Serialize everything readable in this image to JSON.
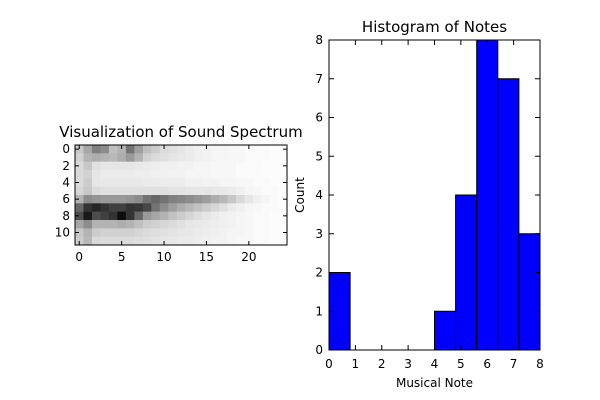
{
  "chart_data": [
    {
      "type": "heatmap",
      "title": "Visualization of Sound Spectrum",
      "xlabel": "",
      "ylabel": "",
      "x_range": [
        -0.5,
        24.5
      ],
      "y_range": [
        -0.5,
        11.5
      ],
      "x_ticks": [
        0,
        5,
        10,
        15,
        20
      ],
      "y_ticks": [
        0,
        2,
        4,
        6,
        8,
        10
      ],
      "y_inverted": true,
      "colormap": "gray_r",
      "grid": false,
      "values": [
        [
          0.22,
          0.35,
          0.5,
          0.45,
          0.25,
          0.3,
          0.55,
          0.38,
          0.25,
          0.2,
          0.14,
          0.12,
          0.1,
          0.08,
          0.06,
          0.05,
          0.04,
          0.04,
          0.03,
          0.03,
          0.02,
          0.02,
          0.02,
          0.01,
          0.01
        ],
        [
          0.18,
          0.3,
          0.32,
          0.3,
          0.28,
          0.32,
          0.4,
          0.3,
          0.18,
          0.14,
          0.12,
          0.1,
          0.09,
          0.08,
          0.06,
          0.05,
          0.04,
          0.04,
          0.03,
          0.03,
          0.02,
          0.02,
          0.02,
          0.01,
          0.01
        ],
        [
          0.15,
          0.22,
          0.12,
          0.1,
          0.1,
          0.1,
          0.1,
          0.09,
          0.08,
          0.07,
          0.06,
          0.06,
          0.05,
          0.05,
          0.04,
          0.04,
          0.03,
          0.03,
          0.03,
          0.02,
          0.02,
          0.02,
          0.01,
          0.01,
          0.01
        ],
        [
          0.15,
          0.18,
          0.1,
          0.08,
          0.08,
          0.08,
          0.08,
          0.07,
          0.07,
          0.06,
          0.06,
          0.05,
          0.05,
          0.04,
          0.04,
          0.04,
          0.03,
          0.03,
          0.03,
          0.02,
          0.02,
          0.02,
          0.01,
          0.01,
          0.01
        ],
        [
          0.14,
          0.2,
          0.1,
          0.09,
          0.09,
          0.09,
          0.09,
          0.09,
          0.08,
          0.08,
          0.07,
          0.07,
          0.07,
          0.06,
          0.06,
          0.05,
          0.05,
          0.04,
          0.04,
          0.03,
          0.03,
          0.02,
          0.02,
          0.01,
          0.01
        ],
        [
          0.16,
          0.22,
          0.14,
          0.12,
          0.12,
          0.12,
          0.12,
          0.12,
          0.12,
          0.12,
          0.12,
          0.11,
          0.11,
          0.1,
          0.1,
          0.1,
          0.09,
          0.09,
          0.08,
          0.06,
          0.04,
          0.03,
          0.02,
          0.02,
          0.01
        ],
        [
          0.3,
          0.45,
          0.42,
          0.4,
          0.4,
          0.4,
          0.42,
          0.45,
          0.55,
          0.6,
          0.55,
          0.5,
          0.48,
          0.45,
          0.42,
          0.38,
          0.32,
          0.28,
          0.22,
          0.15,
          0.1,
          0.06,
          0.04,
          0.02,
          0.01
        ],
        [
          0.6,
          0.8,
          0.85,
          0.8,
          0.75,
          0.75,
          0.8,
          0.78,
          0.72,
          0.55,
          0.45,
          0.38,
          0.32,
          0.28,
          0.24,
          0.2,
          0.16,
          0.12,
          0.08,
          0.06,
          0.04,
          0.03,
          0.02,
          0.02,
          0.01
        ],
        [
          0.7,
          0.9,
          0.7,
          0.75,
          0.8,
          0.95,
          0.8,
          0.6,
          0.4,
          0.35,
          0.3,
          0.24,
          0.2,
          0.16,
          0.13,
          0.1,
          0.08,
          0.06,
          0.05,
          0.04,
          0.03,
          0.02,
          0.02,
          0.01,
          0.01
        ],
        [
          0.35,
          0.45,
          0.3,
          0.3,
          0.3,
          0.32,
          0.3,
          0.25,
          0.2,
          0.18,
          0.16,
          0.14,
          0.12,
          0.1,
          0.09,
          0.08,
          0.07,
          0.06,
          0.05,
          0.04,
          0.03,
          0.02,
          0.02,
          0.01,
          0.01
        ],
        [
          0.22,
          0.3,
          0.2,
          0.18,
          0.18,
          0.18,
          0.18,
          0.16,
          0.14,
          0.13,
          0.12,
          0.11,
          0.1,
          0.09,
          0.08,
          0.07,
          0.06,
          0.05,
          0.04,
          0.04,
          0.03,
          0.02,
          0.02,
          0.01,
          0.01
        ],
        [
          0.2,
          0.28,
          0.15,
          0.14,
          0.14,
          0.14,
          0.14,
          0.13,
          0.12,
          0.11,
          0.1,
          0.09,
          0.08,
          0.08,
          0.07,
          0.06,
          0.05,
          0.05,
          0.04,
          0.03,
          0.03,
          0.02,
          0.02,
          0.01,
          0.01
        ]
      ]
    },
    {
      "type": "bar",
      "title": "Histogram of Notes",
      "xlabel": "Musical Note",
      "ylabel": "Count",
      "xlim": [
        0,
        8
      ],
      "ylim": [
        0,
        8
      ],
      "x_ticks": [
        0,
        1,
        2,
        3,
        4,
        5,
        6,
        7,
        8
      ],
      "y_ticks": [
        0,
        1,
        2,
        3,
        4,
        5,
        6,
        7,
        8
      ],
      "bin_edges": [
        0,
        0.8,
        1.6,
        2.4,
        3.2,
        4.0,
        4.8,
        5.6,
        6.4,
        7.2,
        8.0
      ],
      "values": [
        2,
        0,
        0,
        0,
        0,
        1,
        4,
        8,
        7,
        3
      ],
      "bar_color": "#0000ff",
      "grid": false
    }
  ]
}
